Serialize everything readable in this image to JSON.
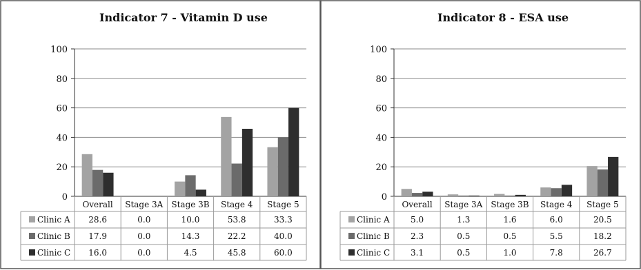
{
  "colors": {
    "Clinic A": "#a3a3a3",
    "Clinic B": "#6b6b6b",
    "Clinic C": "#2e2e2e"
  },
  "chart_data": [
    {
      "type": "bar",
      "title": "Indicator 7 - Vitamin D use",
      "categories": [
        "Overall",
        "Stage 3A",
        "Stage 3B",
        "Stage 4",
        "Stage 5"
      ],
      "ylim": [
        0,
        100
      ],
      "yticks": [
        0,
        20,
        40,
        60,
        80,
        100
      ],
      "grid": true,
      "legend": "data-table",
      "series": [
        {
          "name": "Clinic A",
          "values": [
            28.6,
            0.0,
            10.0,
            53.8,
            33.3
          ],
          "labels": [
            "28.6",
            "0.0",
            "10.0",
            "53.8",
            "33.3"
          ]
        },
        {
          "name": "Clinic B",
          "values": [
            17.9,
            0.0,
            14.3,
            22.2,
            40.0
          ],
          "labels": [
            "17.9",
            "0.0",
            "14.3",
            "22.2",
            "40.0"
          ]
        },
        {
          "name": "Clinic C",
          "values": [
            16.0,
            0.0,
            4.5,
            45.8,
            60.0
          ],
          "labels": [
            "16.0",
            "0.0",
            "4.5",
            "45.8",
            "60.0"
          ]
        }
      ]
    },
    {
      "type": "bar",
      "title": "Indicator 8 - ESA use",
      "categories": [
        "Overall",
        "Stage 3A",
        "Stage 3B",
        "Stage 4",
        "Stage 5"
      ],
      "ylim": [
        0,
        100
      ],
      "yticks": [
        0,
        20,
        40,
        60,
        80,
        100
      ],
      "grid": true,
      "legend": "data-table",
      "series": [
        {
          "name": "Clinic A",
          "values": [
            5.0,
            1.3,
            1.6,
            6.0,
            20.5
          ],
          "labels": [
            "5.0",
            "1.3",
            "1.6",
            "6.0",
            "20.5"
          ]
        },
        {
          "name": "Clinic B",
          "values": [
            2.3,
            0.5,
            0.5,
            5.5,
            18.2
          ],
          "labels": [
            "2.3",
            "0.5",
            "0.5",
            "5.5",
            "18.2"
          ]
        },
        {
          "name": "Clinic C",
          "values": [
            3.1,
            0.5,
            1.0,
            7.8,
            26.7
          ],
          "labels": [
            "3.1",
            "0.5",
            "1.0",
            "7.8",
            "26.7"
          ]
        }
      ]
    }
  ]
}
